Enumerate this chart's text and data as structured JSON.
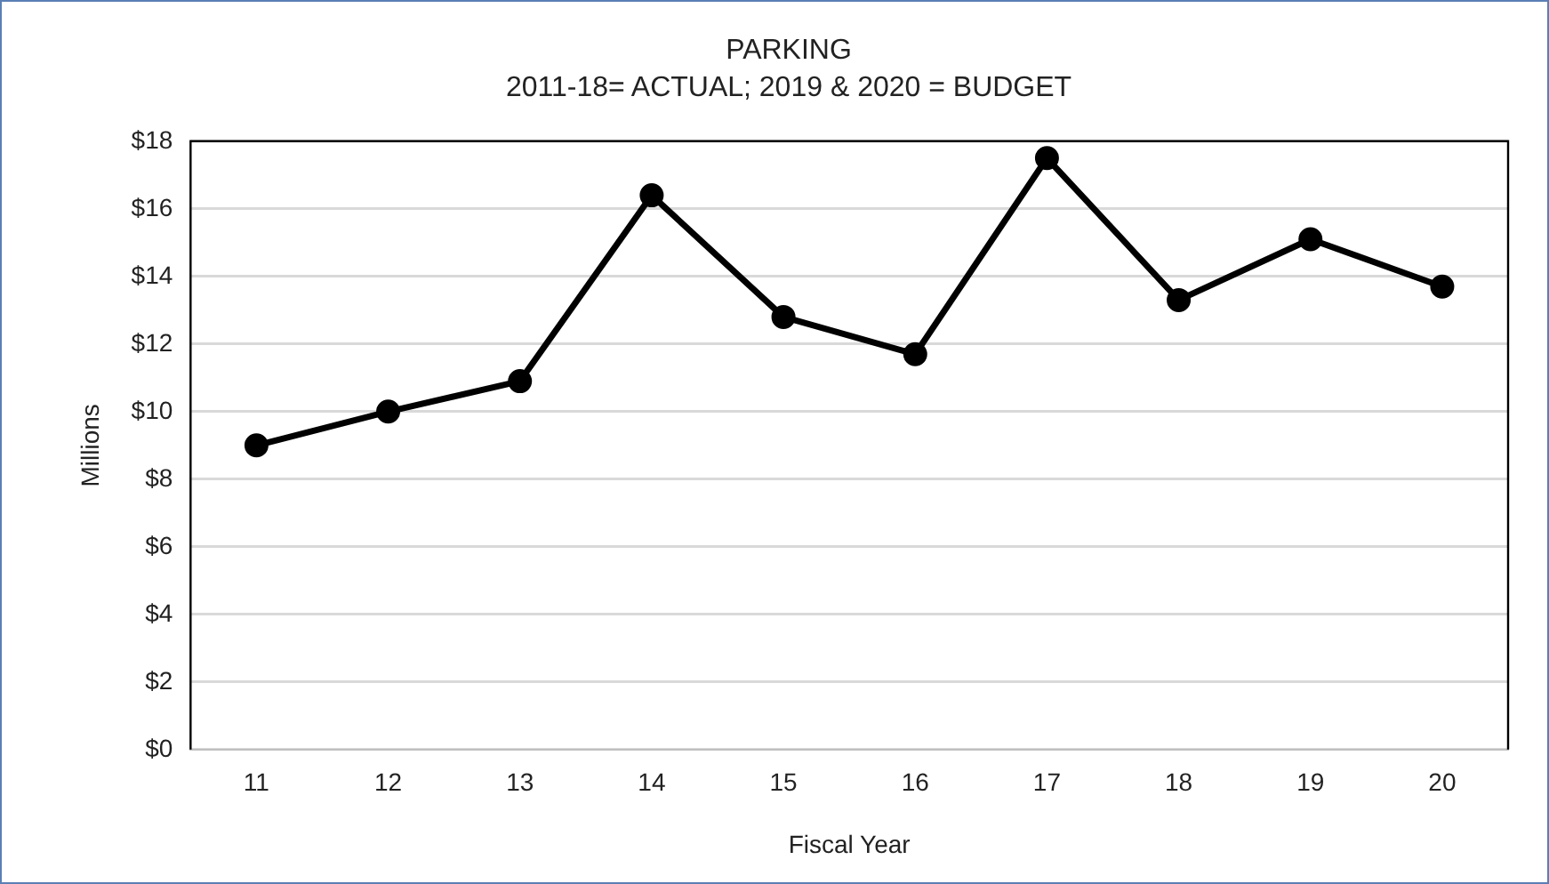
{
  "chart_data": {
    "type": "line",
    "title": "PARKING",
    "subtitle": "2011-18= ACTUAL; 2019 & 2020 = BUDGET",
    "xlabel": "Fiscal Year",
    "ylabel": "Millions",
    "categories": [
      "11",
      "12",
      "13",
      "14",
      "15",
      "16",
      "17",
      "18",
      "19",
      "20"
    ],
    "series": [
      {
        "color": "#000000",
        "values": [
          9.0,
          10.0,
          10.9,
          16.4,
          12.8,
          11.7,
          17.5,
          13.3,
          15.1,
          13.7
        ]
      }
    ],
    "ylim": [
      0,
      18
    ],
    "yticks": [
      {
        "value": 0,
        "label": "$0"
      },
      {
        "value": 2,
        "label": "$2"
      },
      {
        "value": 4,
        "label": "$4"
      },
      {
        "value": 6,
        "label": "$6"
      },
      {
        "value": 8,
        "label": "$8"
      },
      {
        "value": 10,
        "label": "$10"
      },
      {
        "value": 12,
        "label": "$12"
      },
      {
        "value": 14,
        "label": "$14"
      },
      {
        "value": 16,
        "label": "$16"
      },
      {
        "value": 18,
        "label": "$18"
      }
    ],
    "grid": "y",
    "legend": false,
    "marker": "circle",
    "line_style": "solid"
  }
}
